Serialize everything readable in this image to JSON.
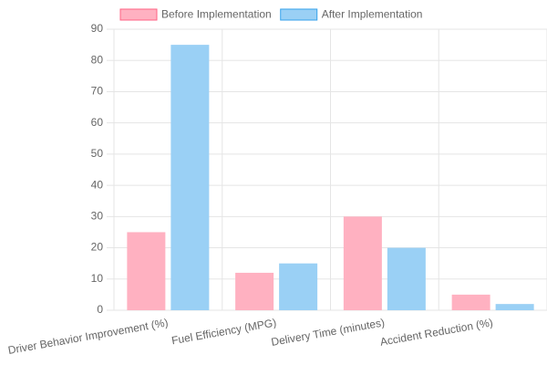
{
  "chart_data": {
    "type": "bar",
    "categories": [
      "Driver Behavior Improvement (%)",
      "Fuel Efficiency (MPG)",
      "Delivery Time (minutes)",
      "Accident Reduction (%)"
    ],
    "series": [
      {
        "name": "Before Implementation",
        "color": "#ffb1c1",
        "border": "#ff6384",
        "values": [
          25,
          12,
          30,
          5
        ]
      },
      {
        "name": "After Implementation",
        "color": "#9ad0f5",
        "border": "#36a2eb",
        "values": [
          85,
          15,
          20,
          2
        ]
      }
    ],
    "ylim": [
      0,
      90
    ],
    "yticks": [
      0,
      10,
      20,
      30,
      40,
      50,
      60,
      70,
      80,
      90
    ],
    "grid": true,
    "legend": "top"
  }
}
